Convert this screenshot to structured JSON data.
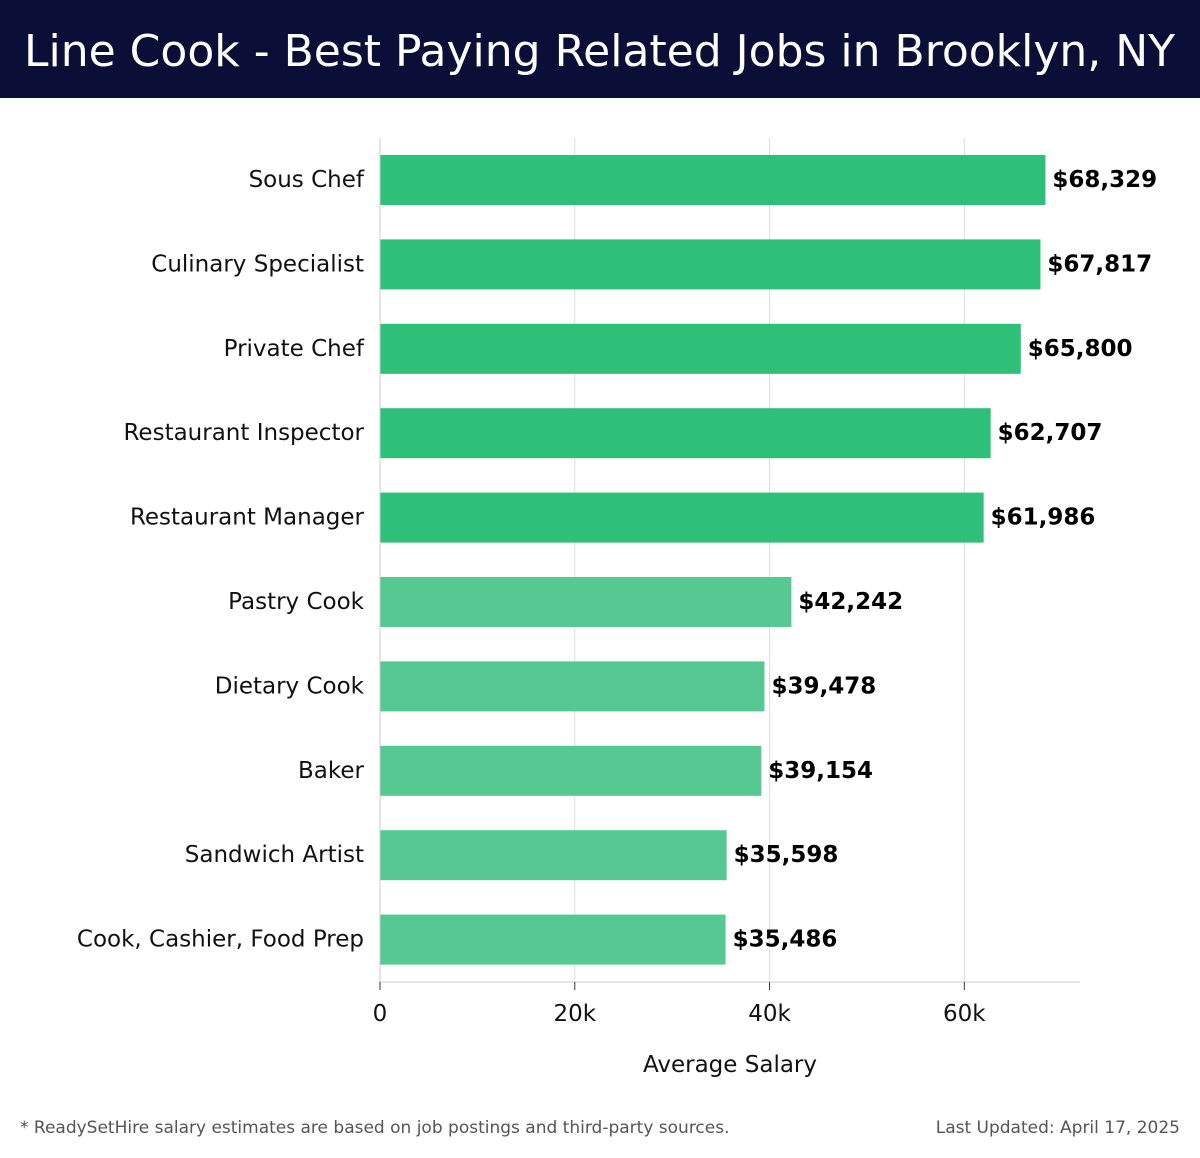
{
  "header": {
    "title": "Line Cook - Best Paying Related Jobs in Brooklyn, NY"
  },
  "footer": {
    "note": "* ReadySetHire salary estimates are based on job postings and third-party sources.",
    "last_updated": "Last Updated: April 17, 2025"
  },
  "colors": {
    "header_bg": "#0b0e36",
    "bar_top": "#2ebf78",
    "bar_other": "#55c991",
    "grid": "#dddddd",
    "text": "#111111"
  },
  "chart_data": {
    "type": "bar",
    "orientation": "horizontal",
    "title": "Line Cook - Best Paying Related Jobs in Brooklyn, NY",
    "xlabel": "Average Salary",
    "ylabel": "",
    "xlim": [
      0,
      71880
    ],
    "xticks": [
      0,
      20000,
      40000,
      60000
    ],
    "xtick_labels": [
      "0",
      "20k",
      "40k",
      "60k"
    ],
    "grid": true,
    "categories": [
      "Sous Chef",
      "Culinary Specialist",
      "Private Chef",
      "Restaurant Inspector",
      "Restaurant Manager",
      "Pastry Cook",
      "Dietary Cook",
      "Baker",
      "Sandwich Artist",
      "Cook, Cashier, Food Prep"
    ],
    "values": [
      68329,
      67817,
      65800,
      62707,
      61986,
      42242,
      39478,
      39154,
      35598,
      35486
    ],
    "value_labels": [
      "$68,329",
      "$67,817",
      "$65,800",
      "$62,707",
      "$61,986",
      "$42,242",
      "$39,478",
      "$39,154",
      "$35,598",
      "$35,486"
    ],
    "highlight_top_n": 5
  }
}
